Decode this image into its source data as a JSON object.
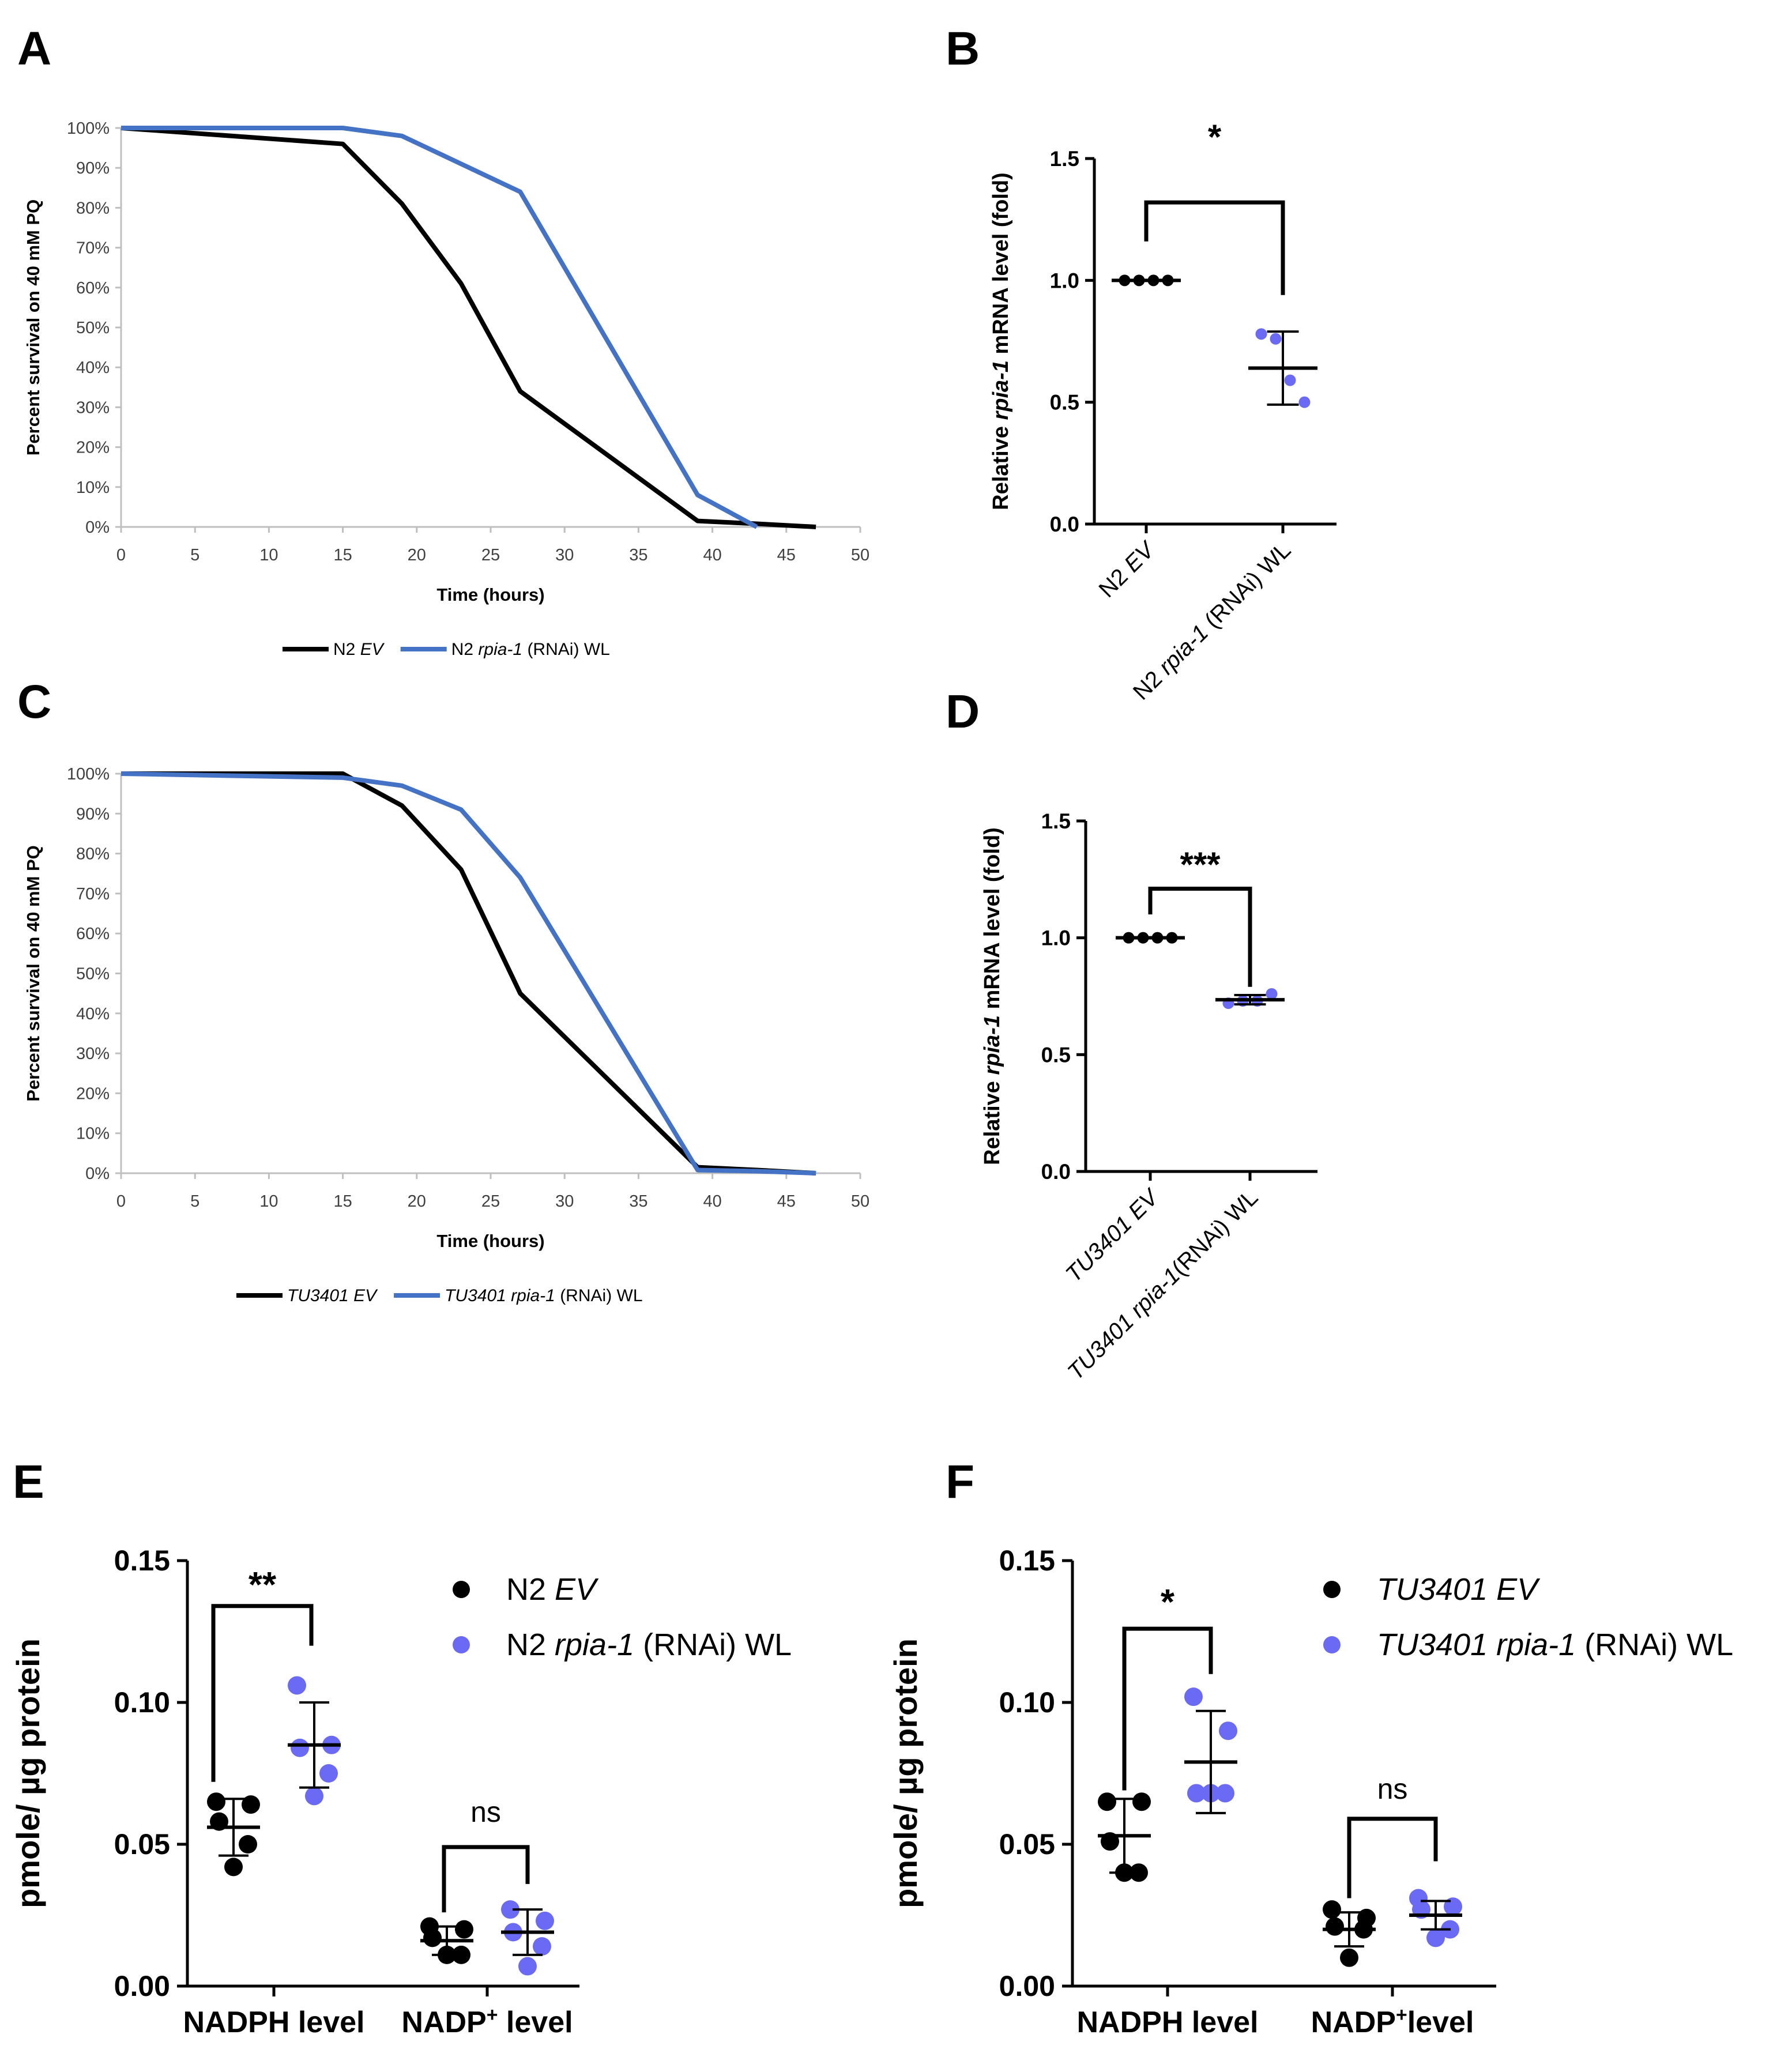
{
  "colors": {
    "black_series": "#000000",
    "blue_series": "#4472C4",
    "purple_points": "#6A6AF5"
  },
  "panels": {
    "A": "A",
    "B": "B",
    "C": "C",
    "D": "D",
    "E": "E",
    "F": "F"
  },
  "chart_data": [
    {
      "id": "A",
      "type": "line",
      "xlabel": "Time (hours)",
      "ylabel": "Percent survival on 40 mM PQ",
      "xlim": [
        0,
        50
      ],
      "ylim": [
        0,
        100
      ],
      "xticks": [
        "0",
        "5",
        "10",
        "15",
        "20",
        "25",
        "30",
        "35",
        "40",
        "45",
        "50"
      ],
      "yticks": [
        "0%",
        "10%",
        "20%",
        "30%",
        "40%",
        "50%",
        "60%",
        "70%",
        "80%",
        "90%",
        "100%"
      ],
      "series": [
        {
          "name": "N2 EV",
          "legend": {
            "prefix": "N2",
            "italic": "EV",
            "suffix": ""
          },
          "color": "#000000",
          "x": [
            0,
            15,
            19,
            23,
            27,
            39,
            43,
            47
          ],
          "y": [
            100,
            96,
            81,
            61,
            34,
            1.5,
            0.8,
            0
          ]
        },
        {
          "name": "N2 rpia-1 (RNAi) WL",
          "legend": {
            "prefix": "N2",
            "italic": "rpia-1",
            "suffix": " (RNAi) WL"
          },
          "color": "#4472C4",
          "x": [
            0,
            15,
            19,
            27,
            39,
            43
          ],
          "y": [
            100,
            100,
            98,
            84,
            8,
            0
          ]
        }
      ]
    },
    {
      "id": "B",
      "type": "scatter",
      "ylabel": {
        "pre": "Relative ",
        "italic": "rpia-1",
        "post": " mRNA level (fold)"
      },
      "ylim": [
        0,
        1.5
      ],
      "yticks": [
        "0.0",
        "0.5",
        "1.0",
        "1.5"
      ],
      "categories": [
        {
          "pre": "N2 ",
          "italic": "EV",
          "post": ""
        },
        {
          "pre": "N2 ",
          "italic": "rpia-1",
          "post": " (RNAi) WL"
        }
      ],
      "series": [
        {
          "name": "N2 EV",
          "color": "#000000",
          "values": [
            1.0,
            1.0,
            1.0,
            1.0
          ],
          "mean": 1.0,
          "sd": 0
        },
        {
          "name": "N2 rpia-1 (RNAi) WL",
          "color": "#6A6AF5",
          "values": [
            0.78,
            0.76,
            0.59,
            0.5
          ],
          "mean": 0.64,
          "sd": 0.15
        }
      ],
      "significance": "*"
    },
    {
      "id": "C",
      "type": "line",
      "xlabel": "Time (hours)",
      "ylabel": "Percent survival on 40 mM PQ",
      "xlim": [
        0,
        50
      ],
      "ylim": [
        0,
        100
      ],
      "xticks": [
        "0",
        "5",
        "10",
        "15",
        "20",
        "25",
        "30",
        "35",
        "40",
        "45",
        "50"
      ],
      "yticks": [
        "0%",
        "10%",
        "20%",
        "30%",
        "40%",
        "50%",
        "60%",
        "70%",
        "80%",
        "90%",
        "100%"
      ],
      "series": [
        {
          "name": "TU3401 EV",
          "legend": {
            "prefix": "",
            "italic": "TU3401 EV",
            "suffix": ""
          },
          "color": "#000000",
          "x": [
            0,
            15,
            19,
            23,
            27,
            39,
            43,
            47
          ],
          "y": [
            100,
            100,
            92,
            76,
            45,
            1.5,
            0.8,
            0
          ]
        },
        {
          "name": "TU3401 rpia-1 (RNAi) WL",
          "legend": {
            "prefix": "",
            "italic": "TU3401 rpia-1",
            "suffix": " (RNAi) WL"
          },
          "color": "#4472C4",
          "x": [
            0,
            15,
            19,
            23,
            27,
            39,
            43,
            47
          ],
          "y": [
            100,
            99,
            97,
            91,
            74,
            0.8,
            0.5,
            0
          ]
        }
      ]
    },
    {
      "id": "D",
      "type": "scatter",
      "ylabel": {
        "pre": "Relative ",
        "italic": "rpia-1",
        "post": " mRNA level (fold)"
      },
      "ylim": [
        0,
        1.5
      ],
      "yticks": [
        "0.0",
        "0.5",
        "1.0",
        "1.5"
      ],
      "categories": [
        {
          "pre": "",
          "italic": "TU3401 EV",
          "post": ""
        },
        {
          "pre": "",
          "italic": "TU3401 rpia-1",
          "post": "(RNAi) WL"
        }
      ],
      "series": [
        {
          "name": "TU3401 EV",
          "color": "#000000",
          "values": [
            1.0,
            1.0,
            1.0,
            1.0
          ],
          "mean": 1.0,
          "sd": 0
        },
        {
          "name": "TU3401 rpia-1 (RNAi) WL",
          "color": "#6A6AF5",
          "values": [
            0.72,
            0.73,
            0.73,
            0.76
          ],
          "mean": 0.735,
          "sd": 0.02
        }
      ],
      "significance": "***"
    },
    {
      "id": "E",
      "type": "scatter",
      "ylabel": "pmole/ µg protein",
      "ylim": [
        0,
        0.15
      ],
      "yticks": [
        "0.00",
        "0.05",
        "0.10",
        "0.15"
      ],
      "groups": [
        {
          "pre": "NADPH level",
          "sup": "",
          "post": ""
        },
        {
          "pre": "NADP",
          "sup": "+",
          "post": " level"
        }
      ],
      "legend": [
        {
          "pre": "N2 ",
          "italic": "EV",
          "post": "",
          "color": "#000000"
        },
        {
          "pre": "N2 ",
          "italic": "rpia-1",
          "post": " (RNAi) WL",
          "color": "#6A6AF5"
        }
      ],
      "series": [
        {
          "name": "N2 EV",
          "color": "#000000",
          "groups": [
            {
              "values": [
                0.065,
                0.064,
                0.058,
                0.05,
                0.042
              ],
              "mean": 0.056,
              "sd": 0.01
            },
            {
              "values": [
                0.021,
                0.02,
                0.017,
                0.011,
                0.011
              ],
              "mean": 0.016,
              "sd": 0.005
            }
          ]
        },
        {
          "name": "N2 rpia-1 (RNAi) WL",
          "color": "#6A6AF5",
          "groups": [
            {
              "values": [
                0.106,
                0.085,
                0.084,
                0.075,
                0.067
              ],
              "mean": 0.085,
              "sd": 0.015
            },
            {
              "values": [
                0.027,
                0.023,
                0.019,
                0.014,
                0.007
              ],
              "mean": 0.019,
              "sd": 0.008
            }
          ]
        }
      ],
      "significance": [
        "**",
        "ns"
      ]
    },
    {
      "id": "F",
      "type": "scatter",
      "ylabel": "pmole/ µg protein",
      "ylim": [
        0,
        0.15
      ],
      "yticks": [
        "0.00",
        "0.05",
        "0.10",
        "0.15"
      ],
      "groups": [
        {
          "pre": "NADPH level",
          "sup": "",
          "post": ""
        },
        {
          "pre": "NADP",
          "sup": "+",
          "post": "level"
        }
      ],
      "legend": [
        {
          "pre": "",
          "italic": "TU3401 EV",
          "post": "",
          "color": "#000000"
        },
        {
          "pre": "",
          "italic": "TU3401 rpia-1",
          "post": " (RNAi) WL",
          "color": "#6A6AF5"
        }
      ],
      "series": [
        {
          "name": "TU3401 EV",
          "color": "#000000",
          "groups": [
            {
              "values": [
                0.065,
                0.065,
                0.051,
                0.04,
                0.04
              ],
              "mean": 0.053,
              "sd": 0.013
            },
            {
              "values": [
                0.027,
                0.024,
                0.021,
                0.02,
                0.01
              ],
              "mean": 0.02,
              "sd": 0.006
            }
          ]
        },
        {
          "name": "TU3401 rpia-1 (RNAi) WL",
          "color": "#6A6AF5",
          "groups": [
            {
              "values": [
                0.102,
                0.09,
                0.068,
                0.068,
                0.068
              ],
              "mean": 0.079,
              "sd": 0.018
            },
            {
              "values": [
                0.031,
                0.028,
                0.027,
                0.02,
                0.017
              ],
              "mean": 0.025,
              "sd": 0.005
            }
          ]
        }
      ],
      "significance": [
        "*",
        "ns"
      ]
    }
  ]
}
